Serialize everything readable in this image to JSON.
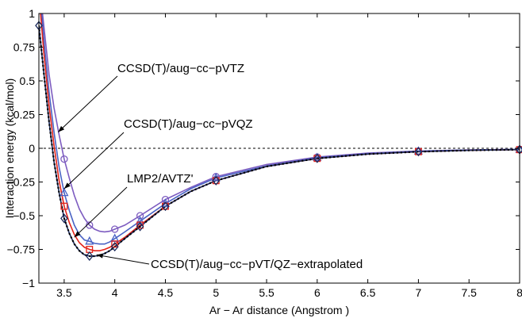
{
  "chart_data": {
    "type": "line",
    "xlabel": "Ar − Ar distance (Angstrom )",
    "ylabel": "Interaction energy (kcal/mol)",
    "xlim": [
      3.25,
      8
    ],
    "ylim": [
      -1,
      1
    ],
    "xticks": [
      "3.5",
      "4",
      "4.5",
      "5",
      "5.5",
      "6",
      "6.5",
      "7",
      "7.5",
      "8"
    ],
    "yticks": [
      "1",
      "0.75",
      "0.5",
      "0.25",
      "0",
      "−0.25",
      "−0.5",
      "−0.75",
      "−1"
    ],
    "grid": false,
    "zero_line": {
      "y": 0,
      "style": "dashed"
    },
    "colors": {
      "purple": "#7d5cc0",
      "blue": "#4a63c4",
      "red": "#e2231a",
      "navy": "#1b2a5c",
      "black": "#000000"
    },
    "annotations": [
      "CCSD(T)/aug−cc−pVTZ",
      "CCSD(T)/aug−cc−pVQZ",
      "LMP2/AVTZ'",
      "CCSD(T)/aug−cc−pVT/QZ−extrapolated"
    ],
    "series": [
      {
        "marker": "circle",
        "color": "#7d5cc0",
        "points": [
          [
            3.5,
            -0.08
          ],
          [
            3.75,
            -0.57
          ],
          [
            4,
            -0.6
          ],
          [
            4.25,
            -0.5
          ],
          [
            4.5,
            -0.38
          ],
          [
            5,
            -0.21
          ],
          [
            6,
            -0.065
          ],
          [
            7,
            -0.02
          ],
          [
            8,
            -0.008
          ]
        ],
        "curve": [
          [
            3.25,
            1.25
          ],
          [
            3.3,
            0.9
          ],
          [
            3.35,
            0.55
          ],
          [
            3.4,
            0.3
          ],
          [
            3.45,
            0.1
          ],
          [
            3.5,
            -0.08
          ],
          [
            3.55,
            -0.22
          ],
          [
            3.6,
            -0.35
          ],
          [
            3.65,
            -0.45
          ],
          [
            3.7,
            -0.52
          ],
          [
            3.75,
            -0.57
          ],
          [
            3.8,
            -0.6
          ],
          [
            3.85,
            -0.615
          ],
          [
            3.9,
            -0.62
          ],
          [
            3.95,
            -0.615
          ],
          [
            4,
            -0.6
          ],
          [
            4.1,
            -0.57
          ],
          [
            4.25,
            -0.5
          ],
          [
            4.5,
            -0.38
          ],
          [
            4.75,
            -0.29
          ],
          [
            5,
            -0.21
          ],
          [
            5.5,
            -0.12
          ],
          [
            6,
            -0.065
          ],
          [
            6.5,
            -0.035
          ],
          [
            7,
            -0.02
          ],
          [
            7.5,
            -0.012
          ],
          [
            8,
            -0.008
          ]
        ]
      },
      {
        "marker": "triangle",
        "color": "#4a63c4",
        "points": [
          [
            3.5,
            -0.33
          ],
          [
            3.75,
            -0.69
          ],
          [
            4,
            -0.67
          ],
          [
            4.25,
            -0.54
          ],
          [
            4.5,
            -0.41
          ],
          [
            5,
            -0.22
          ],
          [
            6,
            -0.07
          ],
          [
            7,
            -0.022
          ],
          [
            8,
            -0.008
          ]
        ],
        "curve": [
          [
            3.25,
            1.25
          ],
          [
            3.3,
            0.8
          ],
          [
            3.35,
            0.42
          ],
          [
            3.4,
            0.12
          ],
          [
            3.45,
            -0.14
          ],
          [
            3.5,
            -0.33
          ],
          [
            3.55,
            -0.46
          ],
          [
            3.6,
            -0.57
          ],
          [
            3.65,
            -0.64
          ],
          [
            3.7,
            -0.68
          ],
          [
            3.75,
            -0.69
          ],
          [
            3.8,
            -0.705
          ],
          [
            3.85,
            -0.71
          ],
          [
            3.9,
            -0.71
          ],
          [
            3.95,
            -0.695
          ],
          [
            4,
            -0.67
          ],
          [
            4.1,
            -0.62
          ],
          [
            4.25,
            -0.54
          ],
          [
            4.5,
            -0.41
          ],
          [
            4.75,
            -0.3
          ],
          [
            5,
            -0.22
          ],
          [
            5.5,
            -0.13
          ],
          [
            6,
            -0.07
          ],
          [
            6.5,
            -0.04
          ],
          [
            7,
            -0.022
          ],
          [
            7.5,
            -0.013
          ],
          [
            8,
            -0.008
          ]
        ]
      },
      {
        "marker": "square",
        "color": "#e2231a",
        "points": [
          [
            3.5,
            -0.43
          ],
          [
            3.75,
            -0.75
          ],
          [
            4,
            -0.71
          ],
          [
            4.25,
            -0.57
          ],
          [
            4.5,
            -0.43
          ],
          [
            5,
            -0.24
          ],
          [
            6,
            -0.075
          ],
          [
            7,
            -0.025
          ],
          [
            8,
            -0.01
          ]
        ],
        "curve": [
          [
            3.25,
            1.15
          ],
          [
            3.3,
            0.7
          ],
          [
            3.35,
            0.32
          ],
          [
            3.4,
            0.02
          ],
          [
            3.45,
            -0.24
          ],
          [
            3.5,
            -0.43
          ],
          [
            3.55,
            -0.55
          ],
          [
            3.6,
            -0.64
          ],
          [
            3.65,
            -0.7
          ],
          [
            3.7,
            -0.735
          ],
          [
            3.75,
            -0.75
          ],
          [
            3.8,
            -0.76
          ],
          [
            3.85,
            -0.76
          ],
          [
            3.9,
            -0.75
          ],
          [
            3.95,
            -0.735
          ],
          [
            4,
            -0.71
          ],
          [
            4.1,
            -0.66
          ],
          [
            4.25,
            -0.57
          ],
          [
            4.5,
            -0.43
          ],
          [
            4.75,
            -0.32
          ],
          [
            5,
            -0.24
          ],
          [
            5.5,
            -0.135
          ],
          [
            6,
            -0.075
          ],
          [
            6.5,
            -0.043
          ],
          [
            7,
            -0.025
          ],
          [
            7.5,
            -0.015
          ],
          [
            8,
            -0.01
          ]
        ]
      },
      {
        "marker": "diamond",
        "color": "#1b2a5c",
        "points": [
          [
            3.25,
            0.91
          ],
          [
            3.5,
            -0.52
          ],
          [
            3.75,
            -0.8
          ],
          [
            4,
            -0.73
          ],
          [
            4.25,
            -0.58
          ],
          [
            4.5,
            -0.43
          ],
          [
            5,
            -0.24
          ],
          [
            6,
            -0.075
          ],
          [
            7,
            -0.025
          ],
          [
            8,
            -0.01
          ]
        ],
        "curve": [
          [
            3.25,
            0.91
          ],
          [
            3.3,
            0.55
          ],
          [
            3.35,
            0.2
          ],
          [
            3.4,
            -0.1
          ],
          [
            3.45,
            -0.33
          ],
          [
            3.5,
            -0.52
          ],
          [
            3.55,
            -0.63
          ],
          [
            3.6,
            -0.71
          ],
          [
            3.65,
            -0.76
          ],
          [
            3.7,
            -0.79
          ],
          [
            3.75,
            -0.8
          ],
          [
            3.8,
            -0.8
          ],
          [
            3.85,
            -0.795
          ],
          [
            3.9,
            -0.78
          ],
          [
            3.95,
            -0.76
          ],
          [
            4,
            -0.73
          ],
          [
            4.1,
            -0.67
          ],
          [
            4.25,
            -0.58
          ],
          [
            4.5,
            -0.43
          ],
          [
            4.75,
            -0.32
          ],
          [
            5,
            -0.24
          ],
          [
            5.5,
            -0.135
          ],
          [
            6,
            -0.075
          ],
          [
            6.5,
            -0.043
          ],
          [
            7,
            -0.025
          ],
          [
            7.5,
            -0.015
          ],
          [
            8,
            -0.01
          ]
        ]
      }
    ]
  }
}
